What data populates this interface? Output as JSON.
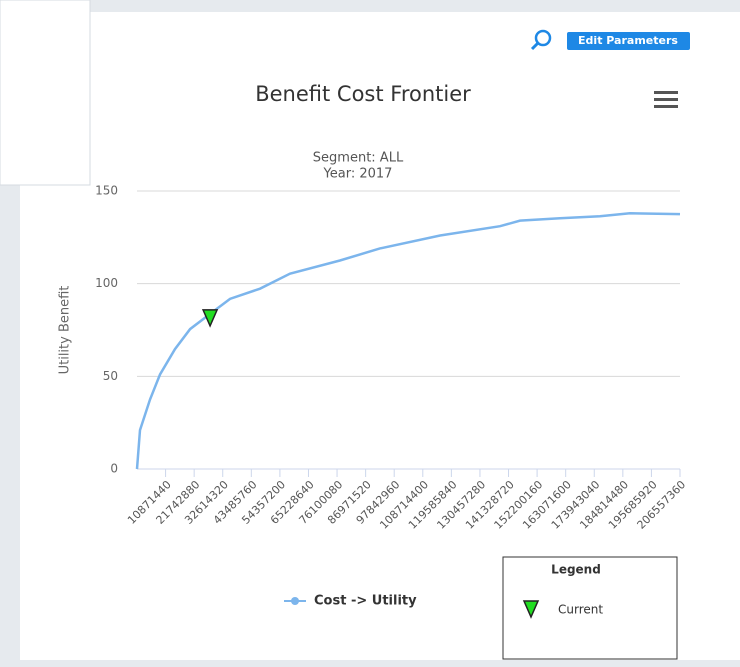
{
  "ui": {
    "button": "Edit Parameters"
  },
  "chart_data": {
    "type": "line",
    "title": "Benefit Cost Frontier",
    "subtitle": [
      "Segment: ALL",
      "Year: 2017"
    ],
    "y_label": "Utility Benefit",
    "series": [
      {
        "name": "Cost -> Utility",
        "color": "#7cb5ec",
        "x": [
          0,
          1140000,
          4950000,
          8750000,
          14450000,
          20200000,
          27800000,
          35400000,
          46800000,
          58200000,
          77200000,
          92400000,
          115300000,
          138100000,
          145700000,
          160900000,
          176100000,
          187500000,
          206557360
        ],
        "values": [
          0,
          21,
          37.5,
          51,
          64.7,
          75.5,
          83.7,
          91.8,
          97.3,
          105.4,
          112.5,
          119,
          126,
          131,
          134,
          135.3,
          136.4,
          138,
          137.5
        ]
      }
    ],
    "current": {
      "name": "Current",
      "x": 27800000,
      "y": 81,
      "color": "#22dd22"
    },
    "legend_title": "Legend",
    "xlim": [
      0,
      206557360
    ],
    "xticks": [
      10871440,
      21742880,
      32614320,
      43485760,
      54357200,
      65228640,
      76100080,
      86971520,
      97842960,
      108714400,
      119585840,
      130457280,
      141328720,
      152200160,
      163071600,
      173943040,
      184814480,
      195685920,
      206557360
    ],
    "ylim": [
      0,
      150
    ],
    "yticks": [
      0,
      50,
      100,
      150
    ],
    "grid": true
  }
}
